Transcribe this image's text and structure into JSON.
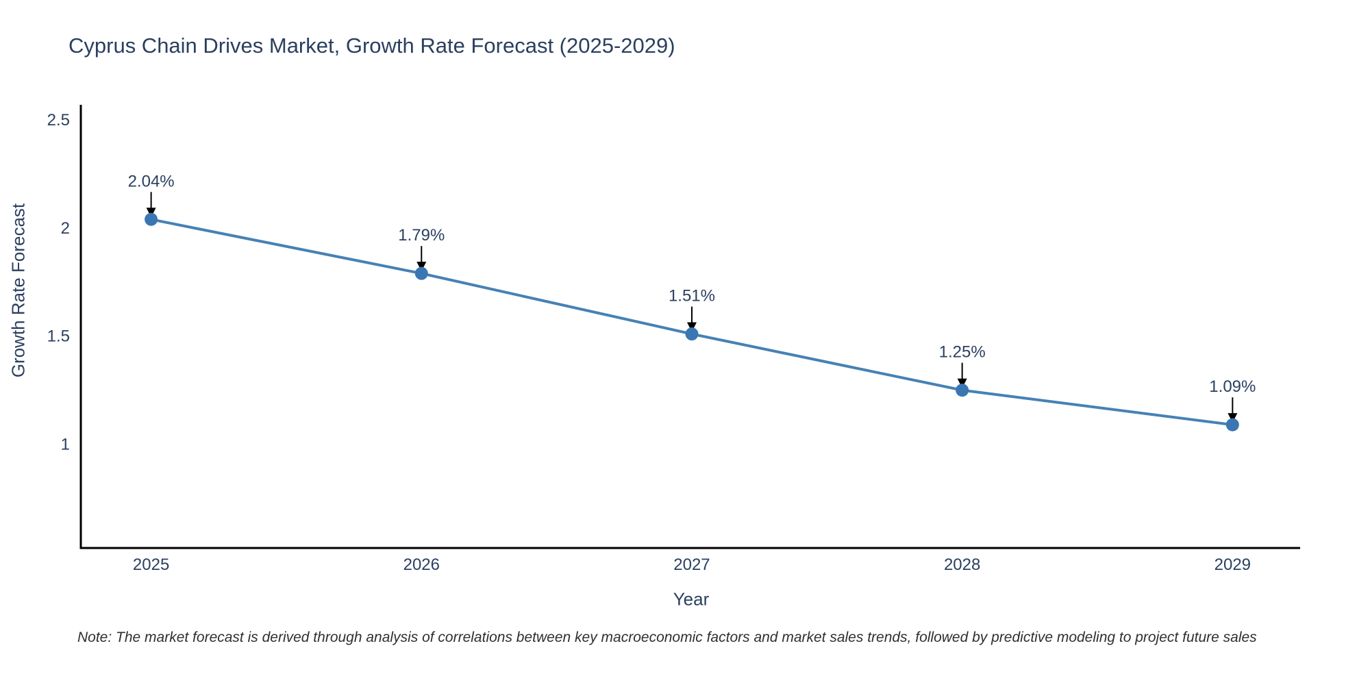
{
  "note": "Note: The market forecast is derived through analysis of correlations between key macroeconomic factors and market sales trends, followed by predictive modeling to project future sales",
  "chart_data": {
    "type": "line",
    "title": "Cyprus Chain Drives Market, Growth Rate Forecast (2025-2029)",
    "xlabel": "Year",
    "ylabel": "Growth Rate Forecast",
    "x": [
      2025,
      2026,
      2027,
      2028,
      2029
    ],
    "y": [
      2.04,
      1.79,
      1.51,
      1.25,
      1.09
    ],
    "point_labels": [
      "2.04%",
      "1.79%",
      "1.51%",
      "1.25%",
      "1.09%"
    ],
    "xtick_labels": [
      "2025",
      "2026",
      "2027",
      "2028",
      "2029"
    ],
    "ytick_values": [
      1,
      1.5,
      2,
      2.5
    ],
    "ytick_labels": [
      "1",
      "1.5",
      "2",
      "2.5"
    ],
    "xlim": [
      2024.74,
      2029.25
    ],
    "ylim": [
      0.52,
      2.57
    ],
    "grid": false,
    "legend": false,
    "colors": {
      "line": "#4681b5",
      "marker": "#3a76b2",
      "annotation_arrow": "#000000",
      "axis": "#000000",
      "tick_text": "#2a3f5f",
      "title_text": "#2a3f5f",
      "note_text": "#2f2f2f"
    }
  }
}
